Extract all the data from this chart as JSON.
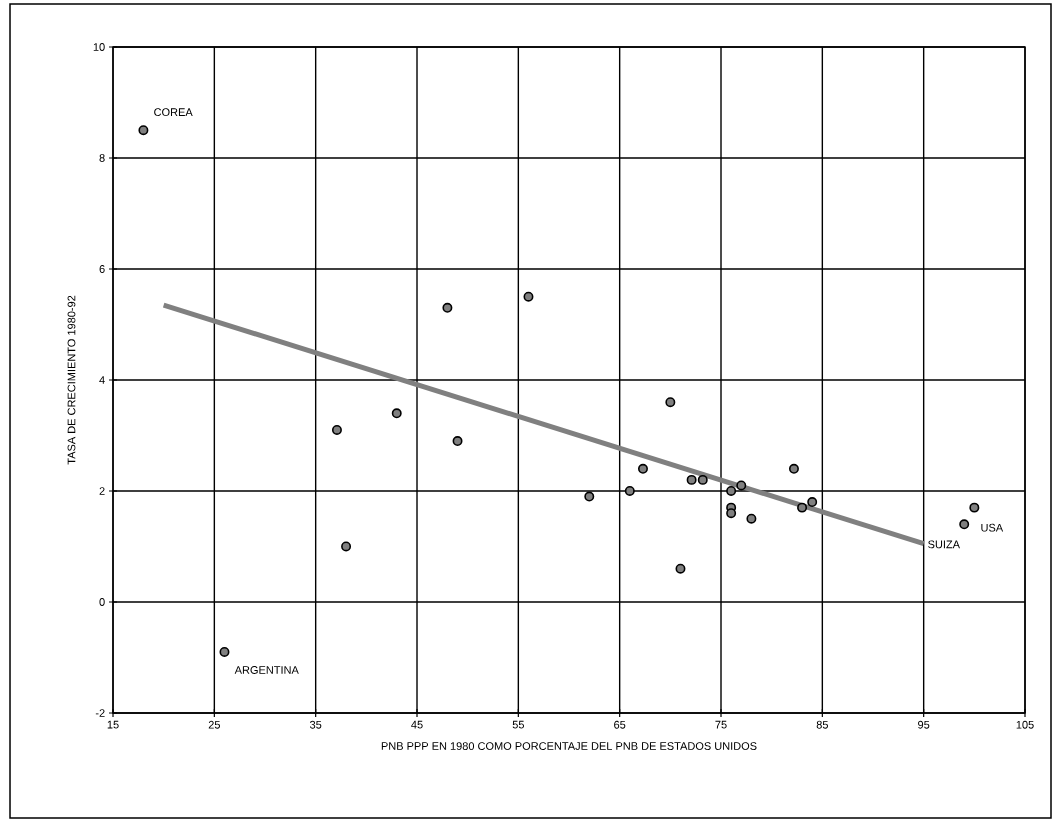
{
  "chart_data": {
    "type": "scatter",
    "xlabel": "PNB PPP EN 1980 COMO PORCENTAJE DEL PNB DE ESTADOS UNIDOS",
    "ylabel": "TASA DE CRECIMIENTO 1980-92",
    "xlim": [
      15,
      105
    ],
    "xticks": [
      15,
      25,
      35,
      45,
      55,
      65,
      75,
      85,
      95,
      105
    ],
    "ylim": [
      -2,
      10
    ],
    "yticks": [
      -2,
      0,
      2,
      4,
      6,
      8,
      10
    ],
    "grid": true,
    "series": [
      {
        "marker": "circle",
        "color": "#808080",
        "x": [
          18,
          26,
          37.1,
          38,
          43,
          48,
          49,
          56,
          62,
          66,
          67.3,
          70,
          71,
          72.1,
          73.2,
          76,
          76,
          76,
          77,
          78,
          82.2,
          83,
          84,
          99,
          100
        ],
        "values": [
          8.5,
          -0.9,
          3.1,
          1.0,
          3.4,
          5.3,
          2.9,
          5.5,
          1.9,
          2.0,
          2.4,
          3.6,
          0.6,
          2.2,
          2.2,
          2.0,
          1.7,
          1.6,
          2.1,
          1.5,
          2.4,
          1.7,
          1.8,
          1.4,
          1.7
        ]
      },
      {
        "type": "line",
        "marker": "none",
        "color": "#808080",
        "x": [
          20,
          95
        ],
        "values": [
          5.35,
          1.05
        ]
      }
    ],
    "annotations": [
      {
        "text": "COREA",
        "x": 18,
        "y": 8.5
      },
      {
        "text": "ARGENTINA",
        "x": 26,
        "y": -0.9
      },
      {
        "text": "SUIZA",
        "x": 99,
        "y": 1.4
      },
      {
        "text": "USA",
        "x": 100,
        "y": 1.7
      }
    ]
  }
}
